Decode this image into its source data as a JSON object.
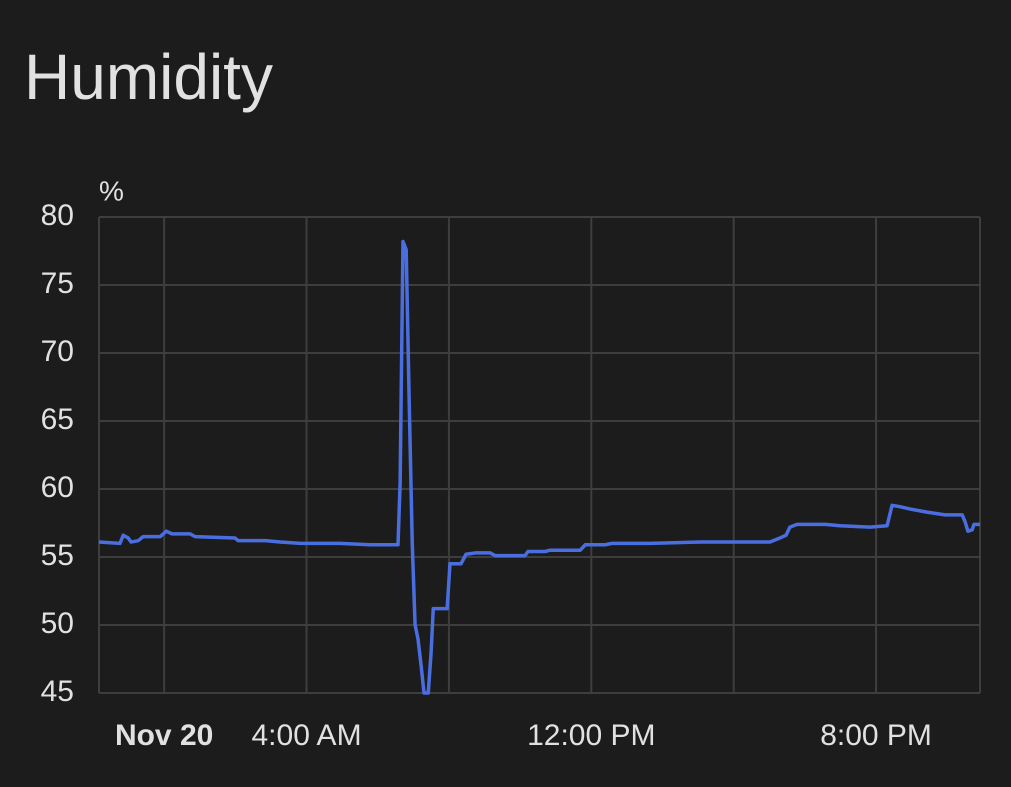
{
  "chart_data": {
    "type": "line",
    "title": "Humidity",
    "y_unit": "%",
    "x": [
      -1.83,
      -1.24,
      -1.15,
      -1.01,
      -0.93,
      -0.73,
      -0.59,
      -0.11,
      0.06,
      0.22,
      0.73,
      0.87,
      1.99,
      2.08,
      2.84,
      3.26,
      3.83,
      4.94,
      5.79,
      6.57,
      6.63,
      6.71,
      6.8,
      6.88,
      6.97,
      7.05,
      7.13,
      7.22,
      7.3,
      7.42,
      7.5,
      7.56,
      7.95,
      8.03,
      8.34,
      8.48,
      8.74,
      9.16,
      9.3,
      10.14,
      10.22,
      10.7,
      10.84,
      11.69,
      11.83,
      12.39,
      12.58,
      13.65,
      15.06,
      17.02,
      17.3,
      17.47,
      17.58,
      17.78,
      18.57,
      18.99,
      19.83,
      20.31,
      20.45,
      20.67,
      21.01,
      21.43,
      21.94,
      22.42,
      22.5,
      22.58,
      22.7,
      22.75,
      22.92
    ],
    "series": [
      {
        "name": "Humidity",
        "color": "#4a6ee0",
        "values": [
          56.1,
          56.0,
          56.6,
          56.4,
          56.1,
          56.2,
          56.5,
          56.5,
          56.9,
          56.7,
          56.7,
          56.5,
          56.4,
          56.2,
          56.2,
          56.1,
          56.0,
          56.0,
          55.9,
          55.9,
          60.5,
          78.2,
          77.6,
          67,
          56,
          50,
          49,
          47,
          45,
          45,
          48,
          51.2,
          51.2,
          54.5,
          54.5,
          55.2,
          55.3,
          55.3,
          55.1,
          55.1,
          55.4,
          55.4,
          55.5,
          55.5,
          55.9,
          55.9,
          56.0,
          56.0,
          56.1,
          56.1,
          56.4,
          56.6,
          57.2,
          57.4,
          57.4,
          57.3,
          57.2,
          57.3,
          58.8,
          58.7,
          58.5,
          58.3,
          58.1,
          58.1,
          57.6,
          56.9,
          57.0,
          57.4,
          57.4
        ]
      }
    ],
    "xlim": [
      -1.83,
      22.92
    ],
    "xticks": [
      {
        "value": 0,
        "label": "Nov 20"
      },
      {
        "value": 4,
        "label": "4:00 AM"
      },
      {
        "value": 8,
        "label": null
      },
      {
        "value": 12,
        "label": "12:00 PM"
      },
      {
        "value": 16,
        "label": null
      },
      {
        "value": 20,
        "label": "8:00 PM"
      }
    ],
    "ylim": [
      45,
      80
    ],
    "yticks": [
      45,
      50,
      55,
      60,
      65,
      70,
      75,
      80
    ],
    "grid": true
  }
}
